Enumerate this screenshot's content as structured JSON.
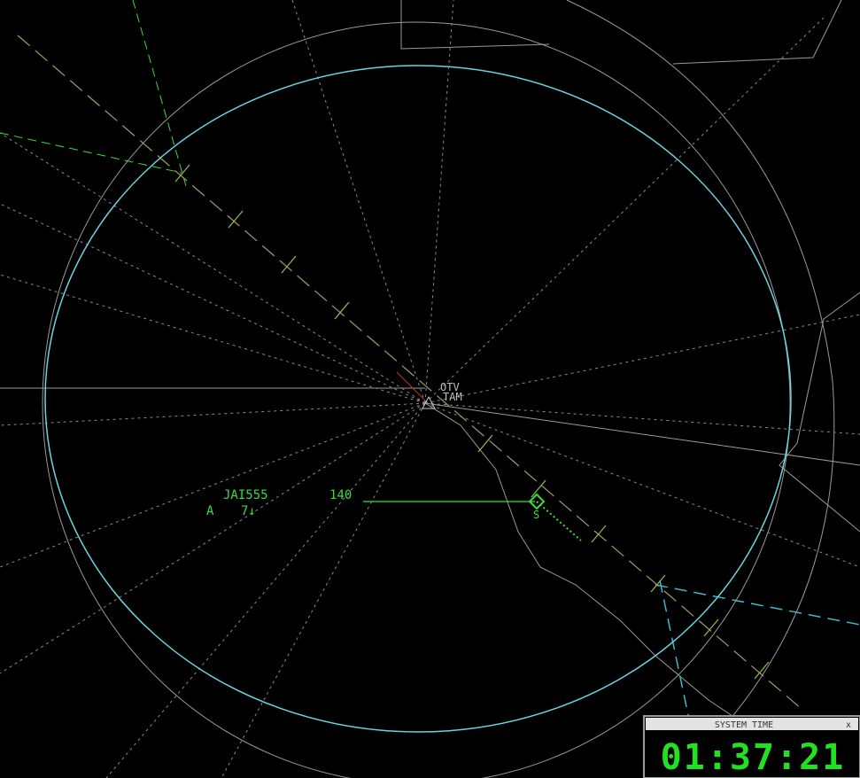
{
  "labels": {
    "fix_1": "OTV",
    "fix_2": "TAM"
  },
  "track": {
    "callsign": "JAI555",
    "altitude": "140",
    "line2_a": "A",
    "line2_b": "7↓",
    "symbol": "S"
  },
  "system_time_window": {
    "title": "SYSTEM TIME",
    "close": "x",
    "time": "01:37:21"
  }
}
